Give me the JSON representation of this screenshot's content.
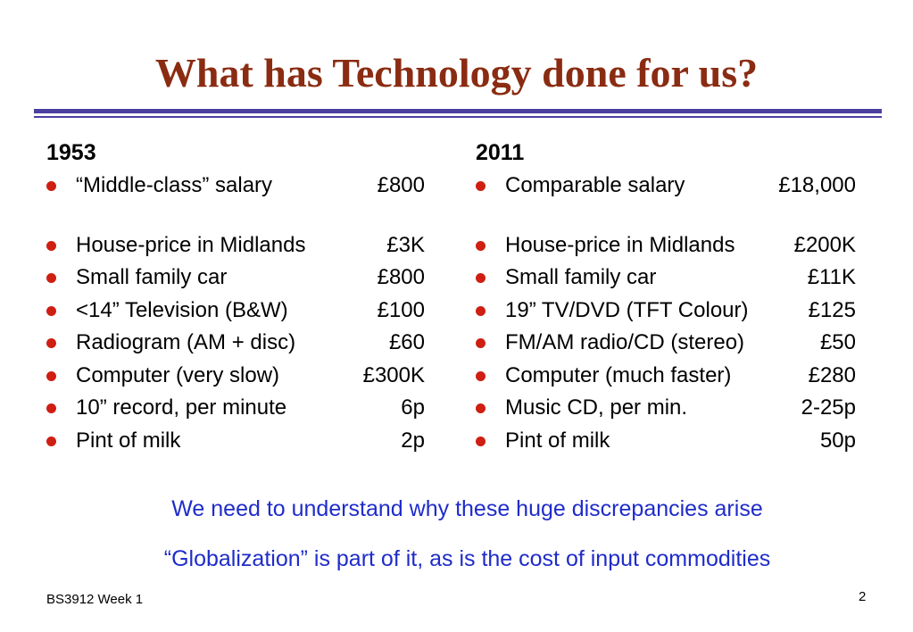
{
  "slide": {
    "title": "What has Technology done for us?",
    "footer": "BS3912 Week 1",
    "page_number": "2"
  },
  "colors": {
    "title": "#8a2c12",
    "rule": "#4b3f9f",
    "bullet": "#ce1f12",
    "note": "#1f2cc9"
  },
  "left": {
    "heading": "1953",
    "items": [
      {
        "label": "“Middle-class” salary",
        "value": "£800"
      },
      {
        "label": "House-price in Midlands",
        "value": "£3K"
      },
      {
        "label": "Small family car",
        "value": "£800"
      },
      {
        "label": "<14” Television (B&W)",
        "value": "£100"
      },
      {
        "label": "Radiogram (AM + disc)",
        "value": "£60"
      },
      {
        "label": "Computer (very slow)",
        "value": "£300K"
      },
      {
        "label": "10” record, per minute",
        "value": "6p"
      },
      {
        "label": "Pint of milk",
        "value": "2p"
      }
    ]
  },
  "right": {
    "heading": "2011",
    "items": [
      {
        "label": "Comparable salary",
        "value": "£18,000"
      },
      {
        "label": "House-price in Midlands",
        "value": "£200K"
      },
      {
        "label": "Small family car",
        "value": "£11K"
      },
      {
        "label": "19” TV/DVD (TFT Colour)",
        "value": "£125"
      },
      {
        "label": "FM/AM radio/CD (stereo)",
        "value": "£50"
      },
      {
        "label": "Computer (much faster)",
        "value": "£280"
      },
      {
        "label": "Music CD, per min.",
        "value": "2-25p"
      },
      {
        "label": "Pint of milk",
        "value": "50p"
      }
    ]
  },
  "notes": [
    "We need to understand why these huge discrepancies arise",
    "“Globalization” is part of it, as is the cost of input commodities"
  ]
}
